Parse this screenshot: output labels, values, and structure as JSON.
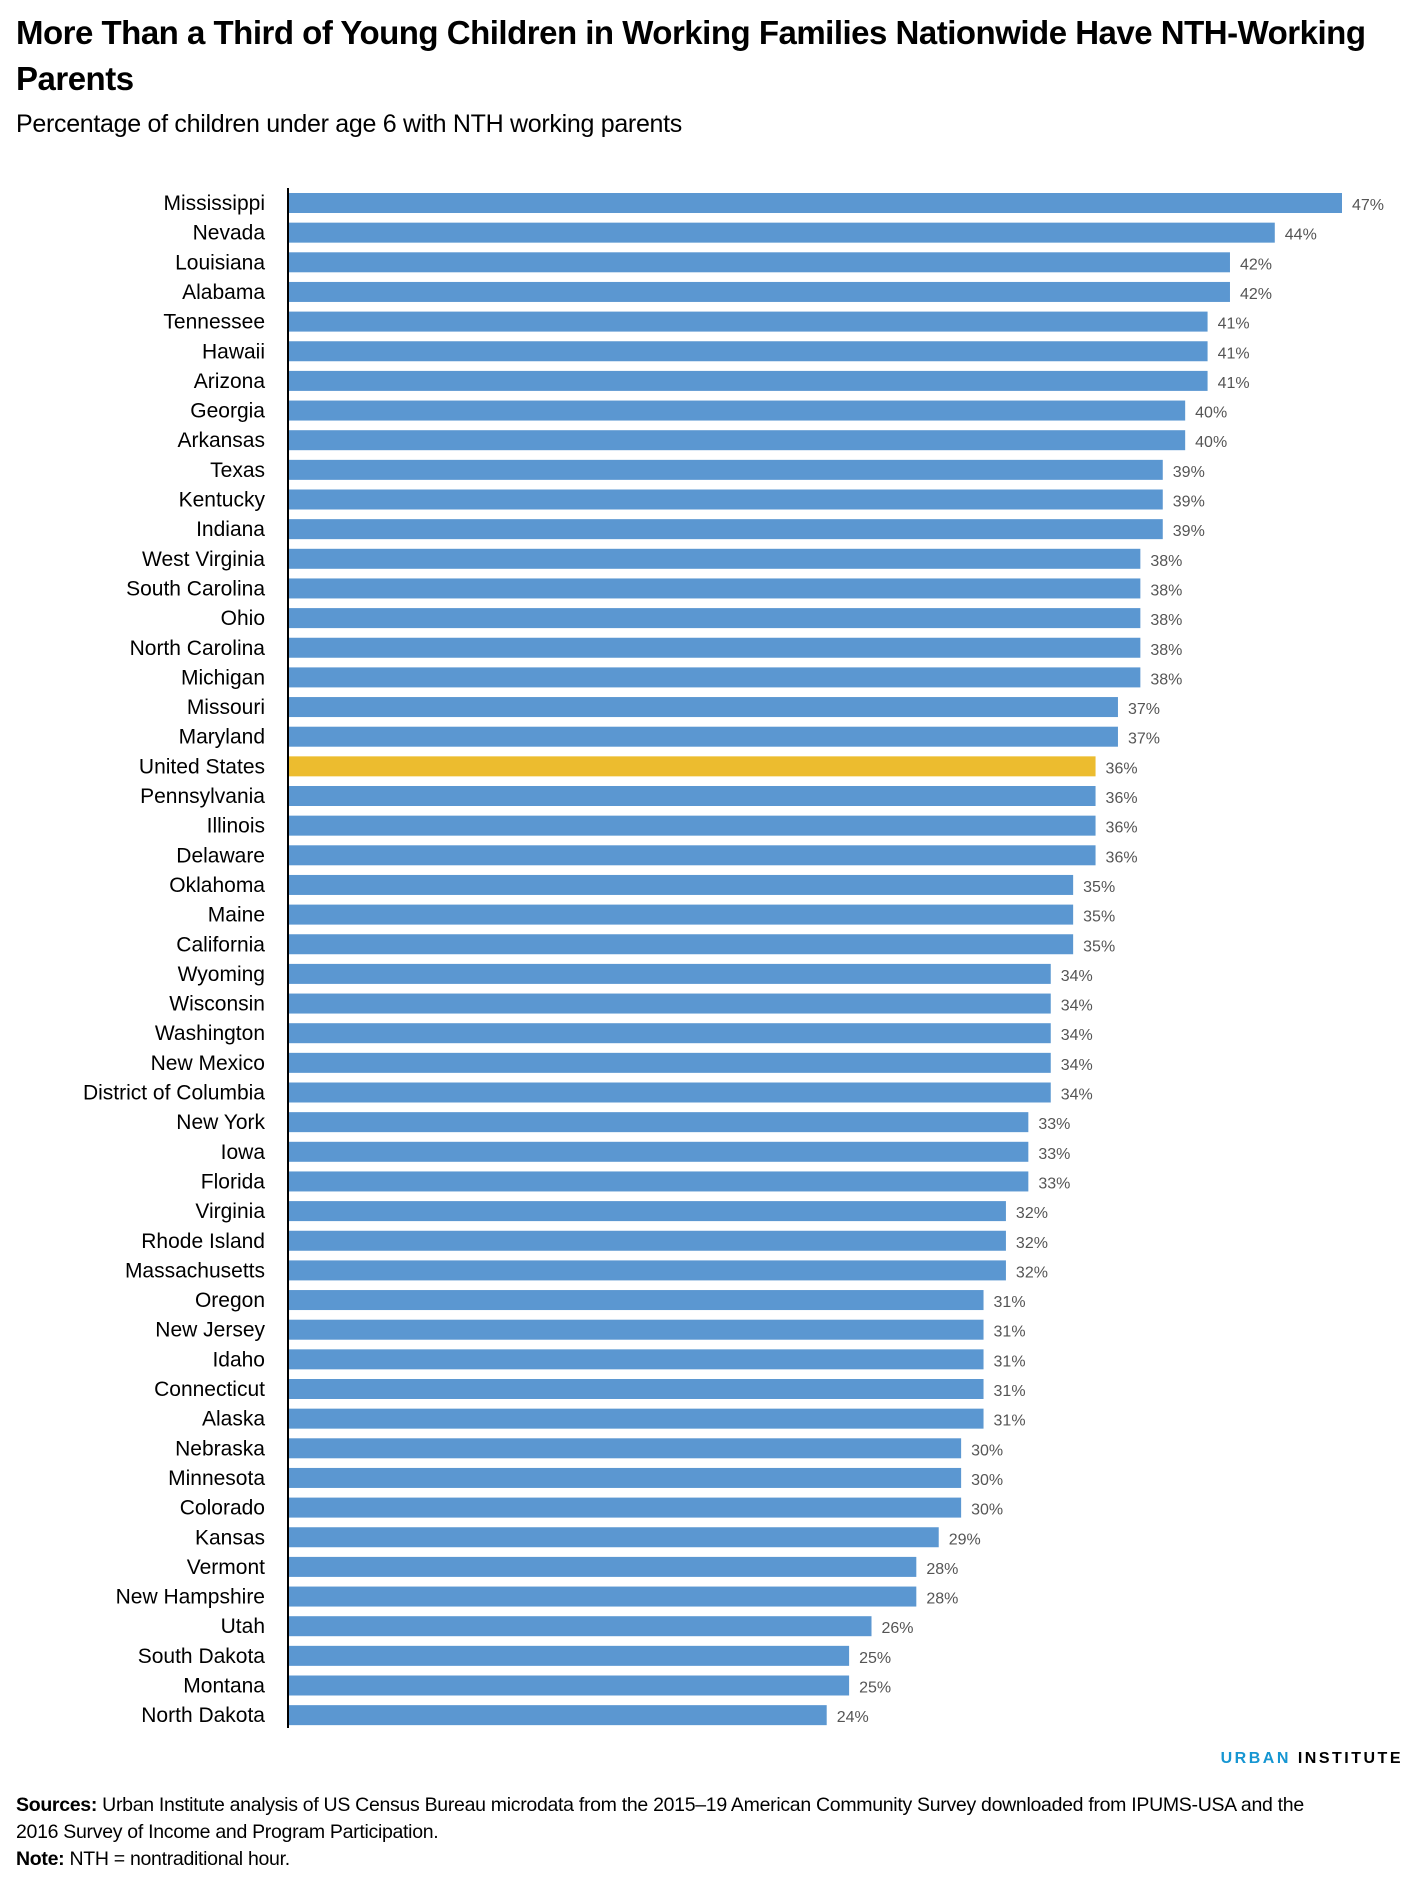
{
  "title": "More Than a Third of Young Children in Working Families Nationwide Have NTH-Working Parents",
  "subtitle": "Percentage of children under age 6 with NTH working parents",
  "brand": {
    "part1": "URBAN",
    "part2": "INSTITUTE"
  },
  "notes": {
    "sources_label": "Sources:",
    "sources_text": "Urban Institute analysis of US Census Bureau microdata from the 2015–19 American Community Survey downloaded from IPUMS-USA and the 2016 Survey of Income and Program Participation.",
    "note_label": "Note:",
    "note_text": "NTH = nontraditional hour."
  },
  "colors": {
    "bar": "#5b97d1",
    "highlight": "#ecbc2f",
    "brand_blue": "#1696d2"
  },
  "chart_data": {
    "type": "bar",
    "orientation": "horizontal",
    "title": "More Than a Third of Young Children in Working Families Nationwide Have NTH-Working Parents",
    "subtitle": "Percentage of children under age 6 with NTH working parents",
    "xlabel": "",
    "ylabel": "",
    "xlim": [
      0,
      47
    ],
    "grid": false,
    "value_suffix": "%",
    "highlight": "United States",
    "categories": [
      "Mississippi",
      "Nevada",
      "Louisiana",
      "Alabama",
      "Tennessee",
      "Hawaii",
      "Arizona",
      "Georgia",
      "Arkansas",
      "Texas",
      "Kentucky",
      "Indiana",
      "West Virginia",
      "South Carolina",
      "Ohio",
      "North Carolina",
      "Michigan",
      "Missouri",
      "Maryland",
      "United States",
      "Pennsylvania",
      "Illinois",
      "Delaware",
      "Oklahoma",
      "Maine",
      "California",
      "Wyoming",
      "Wisconsin",
      "Washington",
      "New Mexico",
      "District of Columbia",
      "New York",
      "Iowa",
      "Florida",
      "Virginia",
      "Rhode Island",
      "Massachusetts",
      "Oregon",
      "New Jersey",
      "Idaho",
      "Connecticut",
      "Alaska",
      "Nebraska",
      "Minnesota",
      "Colorado",
      "Kansas",
      "Vermont",
      "New Hampshire",
      "Utah",
      "South Dakota",
      "Montana",
      "North Dakota"
    ],
    "values": [
      47,
      44,
      42,
      42,
      41,
      41,
      41,
      40,
      40,
      39,
      39,
      39,
      38,
      38,
      38,
      38,
      38,
      37,
      37,
      36,
      36,
      36,
      36,
      35,
      35,
      35,
      34,
      34,
      34,
      34,
      34,
      33,
      33,
      33,
      32,
      32,
      32,
      31,
      31,
      31,
      31,
      31,
      30,
      30,
      30,
      29,
      28,
      28,
      26,
      25,
      25,
      24
    ]
  }
}
